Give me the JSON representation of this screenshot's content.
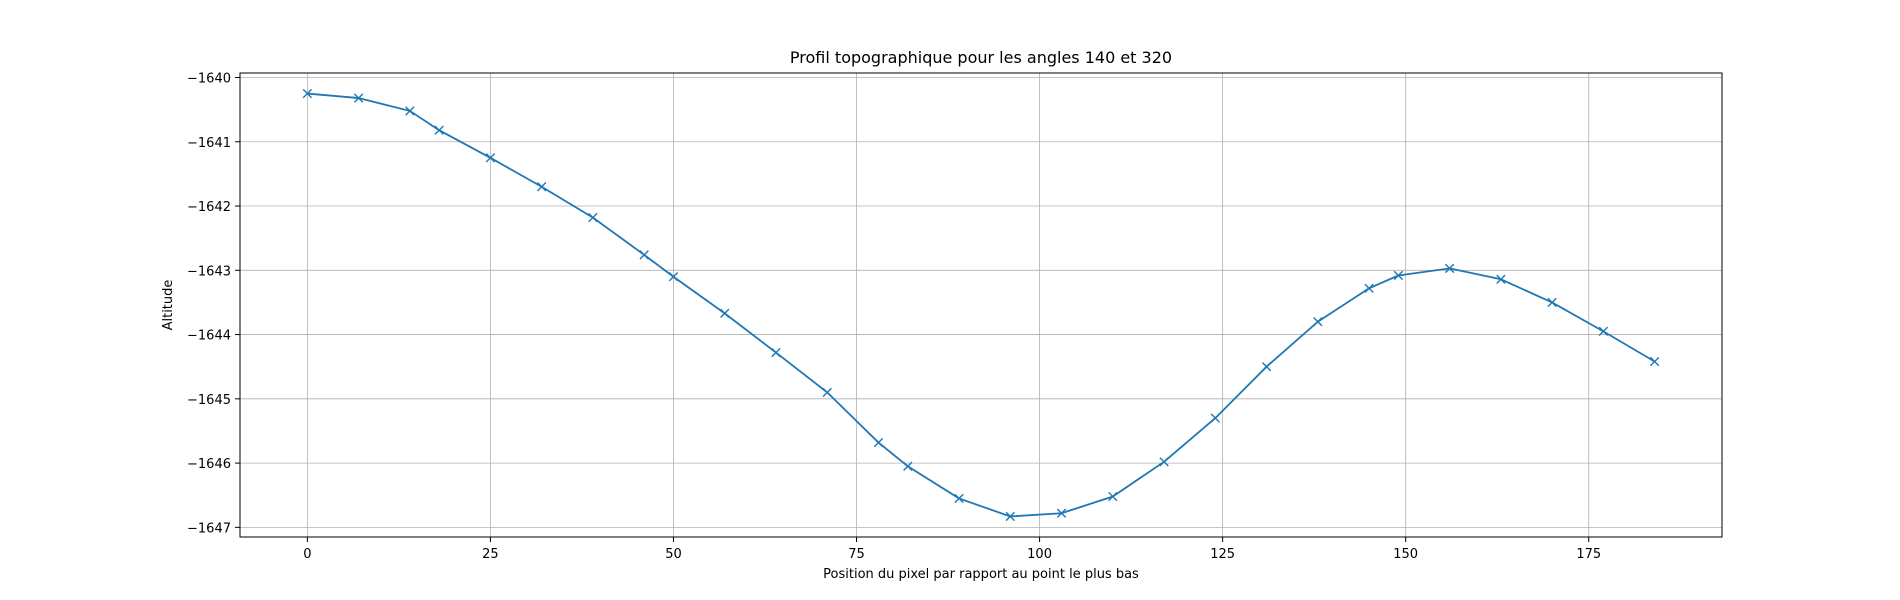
{
  "chart_data": {
    "type": "line",
    "title": "Profil topographique pour les angles 140 et 320",
    "xlabel": "Position du pixel par rapport au point le plus bas",
    "ylabel": "Altitude",
    "xlim": [
      -9.2,
      193.2
    ],
    "ylim": [
      -1647.15,
      -1639.93
    ],
    "x_ticks": [
      0,
      25,
      50,
      75,
      100,
      125,
      150,
      175
    ],
    "x_tick_labels": [
      "0",
      "25",
      "50",
      "75",
      "100",
      "125",
      "150",
      "175"
    ],
    "y_ticks": [
      -1640,
      -1641,
      -1642,
      -1643,
      -1644,
      -1645,
      -1646,
      -1647
    ],
    "y_tick_labels": [
      "−1640",
      "−1641",
      "−1642",
      "−1643",
      "−1644",
      "−1645",
      "−1646",
      "−1647"
    ],
    "grid": true,
    "marker": "x",
    "color": "#1f77b4",
    "series": [
      {
        "x": [
          0,
          7,
          14,
          18,
          25,
          32,
          39,
          46,
          50,
          57,
          64,
          71,
          78,
          82,
          89,
          96,
          103,
          110,
          117,
          124,
          131,
          138,
          145,
          149,
          156,
          163,
          170,
          177,
          184
        ],
        "values": [
          -1640.25,
          -1640.32,
          -1640.52,
          -1640.82,
          -1641.25,
          -1641.7,
          -1642.18,
          -1642.76,
          -1643.1,
          -1643.67,
          -1644.28,
          -1644.9,
          -1645.68,
          -1646.05,
          -1646.55,
          -1646.83,
          -1646.78,
          -1646.52,
          -1645.98,
          -1645.3,
          -1644.5,
          -1643.8,
          -1643.28,
          -1643.08,
          -1642.97,
          -1643.14,
          -1643.5,
          -1643.95,
          -1644.42
        ]
      }
    ]
  }
}
